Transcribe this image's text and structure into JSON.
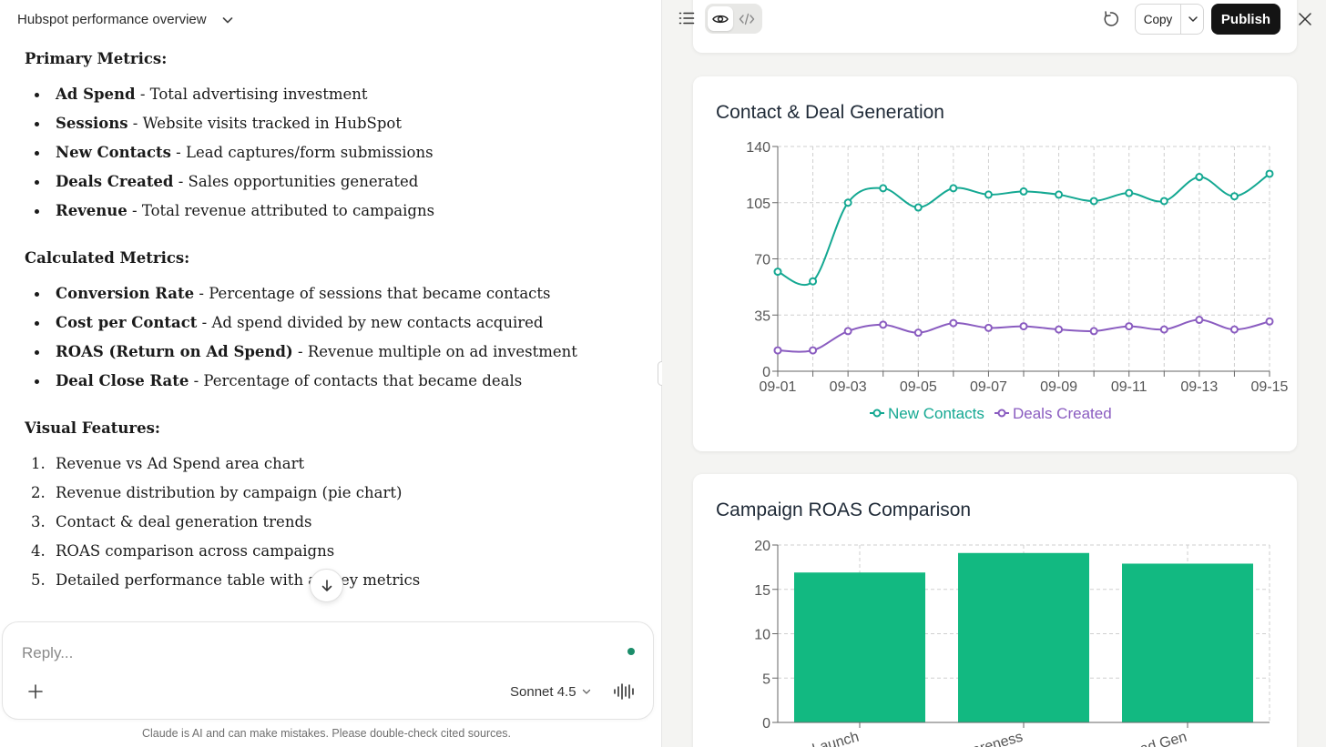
{
  "chat": {
    "title": "Hubspot performance overview",
    "sections": [
      {
        "heading": "Primary Metrics:",
        "items": [
          {
            "term": "Ad Spend",
            "desc": " - Total advertising investment"
          },
          {
            "term": "Sessions",
            "desc": " - Website visits tracked in HubSpot"
          },
          {
            "term": "New Contacts",
            "desc": " - Lead captures/form submissions"
          },
          {
            "term": "Deals Created",
            "desc": " - Sales opportunities generated"
          },
          {
            "term": "Revenue",
            "desc": " - Total revenue attributed to campaigns"
          }
        ]
      },
      {
        "heading": "Calculated Metrics:",
        "items": [
          {
            "term": "Conversion Rate",
            "desc": " - Percentage of sessions that became contacts"
          },
          {
            "term": "Cost per Contact",
            "desc": " - Ad spend divided by new contacts acquired"
          },
          {
            "term": "ROAS (Return on Ad Spend)",
            "desc": " - Revenue multiple on ad investment"
          },
          {
            "term": "Deal Close Rate",
            "desc": " - Percentage of contacts that became deals"
          }
        ]
      },
      {
        "heading": "Visual Features:",
        "items": [
          {
            "num": "1.",
            "text": "Revenue vs Ad Spend area chart"
          },
          {
            "num": "2.",
            "text": "Revenue distribution by campaign (pie chart)"
          },
          {
            "num": "3.",
            "text": "Contact & deal generation trends"
          },
          {
            "num": "4.",
            "text": "ROAS comparison across campaigns"
          },
          {
            "num": "5.",
            "text": "Detailed performance table with all key metrics"
          }
        ]
      }
    ],
    "reply_placeholder": "Reply...",
    "model_label": "Sonnet 4.5",
    "disclaimer": "Claude is AI and can make mistakes. Please double-check cited sources."
  },
  "toolbar": {
    "copy_label": "Copy",
    "publish_label": "Publish"
  },
  "colors": {
    "new_contacts": "#14a892",
    "deals_created": "#8a5cc0",
    "roas_bar": "#12b981",
    "publish_bg": "#141414"
  },
  "icons": [
    "chevron-down-icon",
    "list-icon",
    "eye-icon",
    "code-icon",
    "refresh-icon",
    "close-icon",
    "arrow-down-icon",
    "plus-icon",
    "waveform-icon"
  ],
  "chart_data": [
    {
      "type": "line",
      "title": "Contact & Deal Generation",
      "x": [
        "09-01",
        "09-02",
        "09-03",
        "09-04",
        "09-05",
        "09-06",
        "09-07",
        "09-08",
        "09-09",
        "09-10",
        "09-11",
        "09-12",
        "09-13",
        "09-14",
        "09-15"
      ],
      "x_tick_labels": [
        "09-01",
        "09-03",
        "09-05",
        "09-07",
        "09-09",
        "09-11",
        "09-13",
        "09-15"
      ],
      "series": [
        {
          "name": "New Contacts",
          "values": [
            62,
            56,
            105,
            114,
            102,
            114,
            110,
            112,
            110,
            106,
            111,
            106,
            121,
            109,
            123
          ]
        },
        {
          "name": "Deals Created",
          "values": [
            13,
            13,
            25,
            29,
            24,
            30,
            27,
            28,
            26,
            25,
            28,
            26,
            32,
            26,
            31
          ]
        }
      ],
      "ylim": [
        0,
        140
      ],
      "yticks": [
        0,
        35,
        70,
        105,
        140
      ],
      "grid": true,
      "legend": "bottom"
    },
    {
      "type": "bar",
      "title": "Campaign ROAS Comparison",
      "categories": [
        "Launch",
        "areness",
        "Lead Gen"
      ],
      "values": [
        16.9,
        19.1,
        17.9
      ],
      "ylim": [
        0,
        20
      ],
      "yticks": [
        0,
        5,
        10,
        15,
        20
      ],
      "grid": true
    }
  ]
}
